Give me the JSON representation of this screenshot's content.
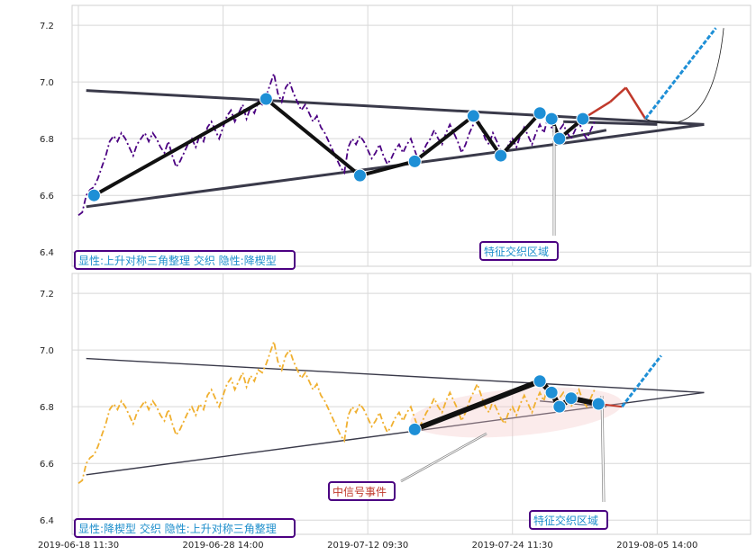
{
  "chart_data": [
    {
      "type": "line",
      "panel": "top",
      "ylim": [
        6.35,
        7.27
      ],
      "yticks": [
        "6.4",
        "6.6",
        "6.8",
        "7.0",
        "7.2"
      ],
      "yvalues": [
        6.4,
        6.6,
        6.8,
        7.0,
        7.2
      ],
      "price_color": "#4b0082",
      "price": [
        6.53,
        6.54,
        6.6,
        6.62,
        6.63,
        6.66,
        6.7,
        6.74,
        6.79,
        6.81,
        6.79,
        6.82,
        6.8,
        6.77,
        6.74,
        6.78,
        6.8,
        6.82,
        6.79,
        6.82,
        6.8,
        6.77,
        6.75,
        6.79,
        6.74,
        6.7,
        6.72,
        6.75,
        6.78,
        6.8,
        6.77,
        6.81,
        6.79,
        6.84,
        6.86,
        6.83,
        6.8,
        6.84,
        6.88,
        6.9,
        6.86,
        6.89,
        6.92,
        6.87,
        6.91,
        6.89,
        6.93,
        6.92,
        6.95,
        6.99,
        7.03,
        6.96,
        6.93,
        6.98,
        7.0,
        6.96,
        6.93,
        6.9,
        6.92,
        6.89,
        6.86,
        6.88,
        6.84,
        6.82,
        6.79,
        6.76,
        6.73,
        6.7,
        6.68,
        6.77,
        6.8,
        6.78,
        6.81,
        6.79,
        6.76,
        6.73,
        6.75,
        6.78,
        6.74,
        6.71,
        6.73,
        6.76,
        6.78,
        6.75,
        6.78,
        6.8,
        6.76,
        6.72,
        6.75,
        6.78,
        6.8,
        6.83,
        6.8,
        6.78,
        6.82,
        6.85,
        6.82,
        6.79,
        6.75,
        6.78,
        6.82,
        6.85,
        6.88,
        6.84,
        6.8,
        6.78,
        6.82,
        6.79,
        6.76,
        6.74,
        6.78,
        6.8,
        6.77,
        6.81,
        6.84,
        6.81,
        6.78,
        6.82,
        6.85,
        6.82,
        6.87,
        6.84,
        6.81,
        6.83,
        6.85,
        6.82,
        6.8,
        6.83,
        6.86,
        6.82,
        6.8,
        6.83,
        6.86
      ],
      "pivots": [
        {
          "i": 4,
          "v": 6.6
        },
        {
          "i": 48,
          "v": 6.94
        },
        {
          "i": 72,
          "v": 6.67
        },
        {
          "i": 86,
          "v": 6.72
        },
        {
          "i": 101,
          "v": 6.88
        },
        {
          "i": 108,
          "v": 6.74
        },
        {
          "i": 118,
          "v": 6.89
        },
        {
          "i": 121,
          "v": 6.87
        },
        {
          "i": 123,
          "v": 6.8
        },
        {
          "i": 129,
          "v": 6.87
        }
      ],
      "label": "显性:上升对称三角整理 交织 隐性:降楔型",
      "zone_label": "特征交织区域"
    },
    {
      "type": "line",
      "panel": "bottom",
      "ylim": [
        6.35,
        7.27
      ],
      "yticks": [
        "6.4",
        "6.6",
        "6.8",
        "7.0",
        "7.2"
      ],
      "yvalues": [
        6.4,
        6.6,
        6.8,
        7.0,
        7.2
      ],
      "price_color": "#f0b030",
      "price": [
        6.53,
        6.54,
        6.6,
        6.62,
        6.63,
        6.66,
        6.7,
        6.74,
        6.79,
        6.81,
        6.79,
        6.82,
        6.8,
        6.77,
        6.74,
        6.78,
        6.8,
        6.82,
        6.79,
        6.82,
        6.8,
        6.77,
        6.75,
        6.79,
        6.74,
        6.7,
        6.72,
        6.75,
        6.78,
        6.8,
        6.77,
        6.81,
        6.79,
        6.84,
        6.86,
        6.83,
        6.8,
        6.84,
        6.88,
        6.9,
        6.86,
        6.89,
        6.92,
        6.87,
        6.91,
        6.89,
        6.93,
        6.92,
        6.95,
        6.99,
        7.03,
        6.96,
        6.93,
        6.98,
        7.0,
        6.96,
        6.93,
        6.9,
        6.92,
        6.89,
        6.86,
        6.88,
        6.84,
        6.82,
        6.79,
        6.76,
        6.73,
        6.7,
        6.68,
        6.77,
        6.8,
        6.78,
        6.81,
        6.79,
        6.76,
        6.73,
        6.75,
        6.78,
        6.74,
        6.71,
        6.73,
        6.76,
        6.78,
        6.75,
        6.78,
        6.8,
        6.76,
        6.72,
        6.75,
        6.78,
        6.8,
        6.83,
        6.8,
        6.78,
        6.82,
        6.85,
        6.82,
        6.79,
        6.75,
        6.78,
        6.82,
        6.85,
        6.88,
        6.84,
        6.8,
        6.78,
        6.82,
        6.79,
        6.76,
        6.74,
        6.78,
        6.8,
        6.77,
        6.81,
        6.84,
        6.81,
        6.78,
        6.82,
        6.85,
        6.82,
        6.87,
        6.84,
        6.81,
        6.83,
        6.85,
        6.82,
        6.8,
        6.83,
        6.86,
        6.82,
        6.8,
        6.83,
        6.86
      ],
      "pivots": [
        {
          "i": 86,
          "v": 6.72
        },
        {
          "i": 118,
          "v": 6.89
        },
        {
          "i": 121,
          "v": 6.85
        },
        {
          "i": 123,
          "v": 6.8
        },
        {
          "i": 126,
          "v": 6.83
        },
        {
          "i": 133,
          "v": 6.81
        }
      ],
      "label": "显性:降楔型 交织 隐性:上升对称三角整理",
      "zone_label": "特征交织区域",
      "event_label": "中信号事件"
    }
  ],
  "x_axis": {
    "tick_labels": [
      "2019-06-18 11:30",
      "2019-06-28 14:00",
      "2019-07-12 09:30",
      "2019-07-24 11:30",
      "2019-08-05 14:00"
    ],
    "tick_index": [
      0,
      37,
      74,
      111,
      148
    ]
  },
  "colors": {
    "pivot": "#1e8fd6",
    "zigzag": "#111111",
    "triangle": "#3a3a4a",
    "label_border": "#4b0082",
    "label_text": "#1f8fcc",
    "event_text": "#c0392b",
    "forecast_red": "#c0392b",
    "forecast_blue": "#1e8fd6"
  }
}
